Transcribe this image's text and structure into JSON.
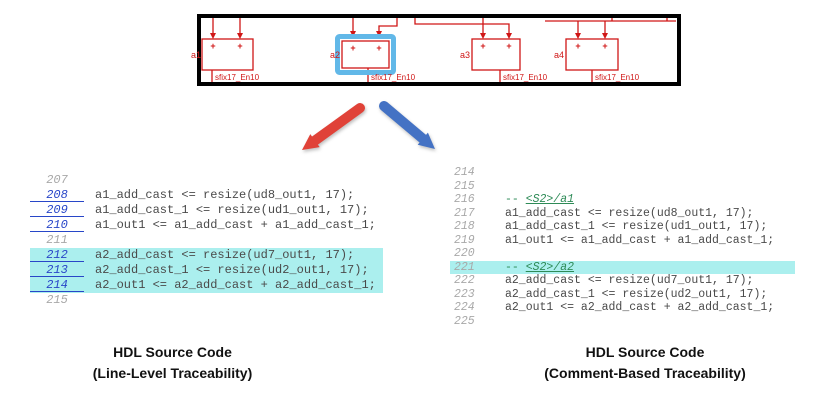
{
  "diagram": {
    "port_symbol": "+",
    "blocks": [
      {
        "name": "a1",
        "signal": "sfix17_En10"
      },
      {
        "name": "a2",
        "signal": "sfix17_En10",
        "selected": true
      },
      {
        "name": "a3",
        "signal": "sfix17_En10"
      },
      {
        "name": "a4",
        "signal": "sfix17_En10"
      }
    ]
  },
  "left_listing": {
    "rows": [
      {
        "number": "207",
        "code": "",
        "link": false,
        "highlight": false
      },
      {
        "number": "208",
        "code": "a1_add_cast <= resize(ud8_out1, 17);",
        "link": true,
        "highlight": false
      },
      {
        "number": "209",
        "code": "a1_add_cast_1 <= resize(ud1_out1, 17);",
        "link": true,
        "highlight": false
      },
      {
        "number": "210",
        "code": "a1_out1 <= a1_add_cast + a1_add_cast_1;",
        "link": true,
        "highlight": false
      },
      {
        "number": "211",
        "code": "",
        "link": false,
        "highlight": false
      },
      {
        "number": "212",
        "code": "a2_add_cast <= resize(ud7_out1, 17);",
        "link": true,
        "highlight": true
      },
      {
        "number": "213",
        "code": "a2_add_cast_1 <= resize(ud2_out1, 17);",
        "link": true,
        "highlight": true
      },
      {
        "number": "214",
        "code": "a2_out1 <= a2_add_cast + a2_add_cast_1;",
        "link": true,
        "highlight": true
      },
      {
        "number": "215",
        "code": "",
        "link": false,
        "highlight": false
      }
    ]
  },
  "right_listing": {
    "rows": [
      {
        "number": "214",
        "code": ""
      },
      {
        "number": "215",
        "code": ""
      },
      {
        "number": "216",
        "comment_prefix": "--",
        "comment_link": "<S2>/a1"
      },
      {
        "number": "217",
        "code": "a1_add_cast <= resize(ud8_out1, 17);"
      },
      {
        "number": "218",
        "code": "a1_add_cast_1 <= resize(ud1_out1, 17);"
      },
      {
        "number": "219",
        "code": "a1_out1 <= a1_add_cast + a1_add_cast_1;"
      },
      {
        "number": "220",
        "code": ""
      },
      {
        "number": "221",
        "comment_prefix": "--",
        "comment_link": "<S2>/a2",
        "highlight": true
      },
      {
        "number": "222",
        "code": "a2_add_cast <= resize(ud7_out1, 17);"
      },
      {
        "number": "223",
        "code": "a2_add_cast_1 <= resize(ud2_out1, 17);"
      },
      {
        "number": "224",
        "code": "a2_out1 <= a2_add_cast + a2_add_cast_1;"
      },
      {
        "number": "225",
        "code": ""
      }
    ]
  },
  "captions": {
    "left": {
      "line1": "HDL Source Code",
      "line2": "(Line-Level Traceability)"
    },
    "right": {
      "line1": "HDL Source Code",
      "line2": "(Comment-Based Traceability)"
    }
  },
  "colors": {
    "diagram_red": "#d01616",
    "selection_blue": "#62b8e8",
    "highlight_cyan": "#abefee",
    "link_blue": "#2846c8",
    "comment_green": "#2e8b57",
    "arrow_red": "#e04238",
    "arrow_blue": "#4472c4"
  }
}
